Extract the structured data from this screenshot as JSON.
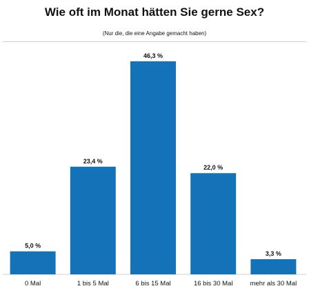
{
  "chart_data": {
    "type": "bar",
    "title": "Wie oft im Monat hätten Sie gerne Sex?",
    "subtitle": "(Nur die, die eine Angabe gemacht haben)",
    "categories": [
      "0 Mal",
      "1 bis 5 Mal",
      "6 bis 15 Mal",
      "16 bis 30 Mal",
      "mehr als 30 Mal"
    ],
    "values": [
      5.0,
      23.4,
      46.3,
      22.0,
      3.3
    ],
    "value_labels": [
      "5,0 %",
      "23,4 %",
      "46,3 %",
      "22,0 %",
      "3,3 %"
    ],
    "ylim": [
      0,
      50
    ],
    "grid": false,
    "colors": {
      "bar": "#1473b8",
      "baseline": "#cfcfcf"
    }
  }
}
